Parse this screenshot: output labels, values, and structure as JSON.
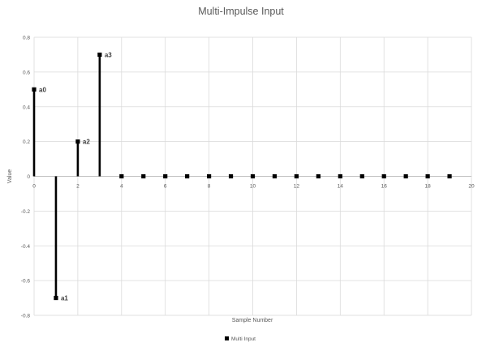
{
  "chart_data": {
    "type": "scatter",
    "style": "stem",
    "title": "Multi-Impulse Input",
    "xlabel": "Sample Number",
    "ylabel": "Value",
    "xlim": [
      0,
      20
    ],
    "ylim": [
      -0.8,
      0.8
    ],
    "xticks": [
      0,
      2,
      4,
      6,
      8,
      10,
      12,
      14,
      16,
      18,
      20
    ],
    "yticks": [
      -0.8,
      -0.6,
      -0.4,
      -0.2,
      0,
      0.2,
      0.4,
      0.6,
      0.8
    ],
    "xtick_labels": [
      "0",
      "2",
      "4",
      "6",
      "8",
      "10",
      "12",
      "14",
      "16",
      "18",
      "20"
    ],
    "ytick_labels": [
      "-0.8",
      "-0.6",
      "-0.4",
      "-0.2",
      "0",
      "0.2",
      "0.4",
      "0.6",
      "0.8"
    ],
    "grid": true,
    "legend_position": "bottom",
    "series": [
      {
        "name": "Multi Input",
        "color": "#000000",
        "x": [
          0,
          1,
          2,
          3,
          4,
          5,
          6,
          7,
          8,
          9,
          10,
          11,
          12,
          13,
          14,
          15,
          16,
          17,
          18,
          19
        ],
        "y": [
          0.5,
          -0.7,
          0.2,
          0.7,
          0,
          0,
          0,
          0,
          0,
          0,
          0,
          0,
          0,
          0,
          0,
          0,
          0,
          0,
          0,
          0
        ]
      }
    ],
    "annotations": [
      {
        "x": 0,
        "y": 0.5,
        "text": "a0"
      },
      {
        "x": 1,
        "y": -0.7,
        "text": "a1"
      },
      {
        "x": 2,
        "y": 0.2,
        "text": "a2"
      },
      {
        "x": 3,
        "y": 0.7,
        "text": "a3"
      }
    ]
  }
}
